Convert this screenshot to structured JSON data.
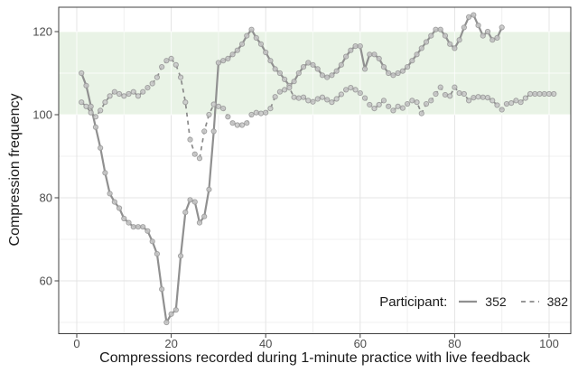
{
  "chart_data": {
    "type": "line",
    "title": "",
    "xlabel": "Compressions recorded during 1-minute practice with live feedback",
    "ylabel": "Compression frequency",
    "xlim": [
      -4,
      104.6
    ],
    "ylim": [
      47.3,
      125.9
    ],
    "x_ticks": [
      0,
      20,
      40,
      60,
      80,
      100
    ],
    "x_minor_ticks": [
      10,
      30,
      50,
      70,
      90
    ],
    "y_ticks": [
      60,
      80,
      100,
      120
    ],
    "y_minor_ticks": [
      50,
      70,
      90,
      110
    ],
    "grid": true,
    "legend_position": "inside-bottom-right",
    "target_band": {
      "ymin": 100,
      "ymax": 120,
      "color": "#e9f3e6"
    },
    "series": [
      {
        "name": "352",
        "line_style": "solid",
        "color": "#909090",
        "x_start": 1,
        "x_step": 1,
        "values": [
          110,
          107,
          102,
          97,
          92,
          86,
          81,
          79,
          77.5,
          75,
          74,
          73,
          73,
          73,
          72,
          69.5,
          66.5,
          58,
          50,
          52,
          53,
          66,
          76.5,
          79.5,
          79,
          74,
          75.5,
          82,
          96,
          112.5,
          113,
          113.5,
          114.5,
          115.5,
          117,
          119,
          120.5,
          118.5,
          117,
          115,
          113,
          111,
          110,
          108.5,
          107,
          108,
          110,
          111.5,
          112.5,
          112,
          111,
          109.5,
          109,
          109.5,
          110.5,
          112,
          114,
          115.5,
          116.5,
          116.5,
          111,
          114.5,
          114.5,
          113.5,
          111.5,
          110,
          109.5,
          110,
          110.5,
          111.5,
          113,
          114.5,
          116,
          117.5,
          119,
          120.5,
          120.5,
          119,
          117,
          116,
          118,
          121,
          123.5,
          124,
          121.5,
          119,
          120,
          118,
          118.5,
          121
        ]
      },
      {
        "name": "382",
        "line_style": "dashed",
        "color": "#8a8a8a",
        "x_start": 1,
        "x_step": 1,
        "values": [
          103,
          102,
          100.5,
          99.5,
          101,
          103,
          104.5,
          105.5,
          105,
          104.5,
          105,
          105.5,
          104.5,
          105.5,
          106.5,
          107.5,
          109,
          111.5,
          113,
          113.5,
          112,
          109,
          103,
          94,
          90.5,
          89.5,
          96,
          100,
          102.5,
          102,
          101.5,
          99.5,
          98,
          97.5,
          97.5,
          98,
          100,
          100.5,
          100.3,
          100.5,
          101.5,
          104.3,
          105.5,
          106,
          106.5,
          104.2,
          104,
          104.2,
          103.4,
          103.1,
          103.8,
          104.2,
          103.6,
          103,
          103.8,
          104.9,
          106,
          106.5,
          106,
          105.2,
          104,
          102.4,
          101.5,
          102.4,
          103.4,
          102,
          101,
          102,
          101.6,
          102.6,
          103.4,
          103,
          100.3,
          102.6,
          103.4,
          105,
          106.6,
          104.8,
          104.5,
          106.6,
          105.2,
          105,
          103.4,
          104.1,
          104.3,
          104.2,
          104.1,
          103.4,
          102.3,
          101.2,
          102.6,
          102.8,
          103.4,
          103,
          104,
          105,
          105,
          105,
          105,
          105,
          105
        ]
      }
    ],
    "point_style": {
      "fill": "#c9c9c9",
      "stroke": "#9a9a9a",
      "radius": 2.6
    }
  },
  "legend": {
    "title": "Participant:",
    "items": [
      {
        "label": "352",
        "style": "solid"
      },
      {
        "label": "382",
        "style": "dashed"
      }
    ]
  },
  "colors": {
    "panel_border": "#404040",
    "tick_mark": "#404040",
    "tick_label": "#4d4d4d",
    "grid_major": "#e4e4e4",
    "grid_minor": "#f0f0f0",
    "grid_on_band": "rgba(255,255,255,0.75)",
    "grid_minor_on_band": "rgba(255,255,255,0.5)",
    "band": "#e9f3e6"
  }
}
